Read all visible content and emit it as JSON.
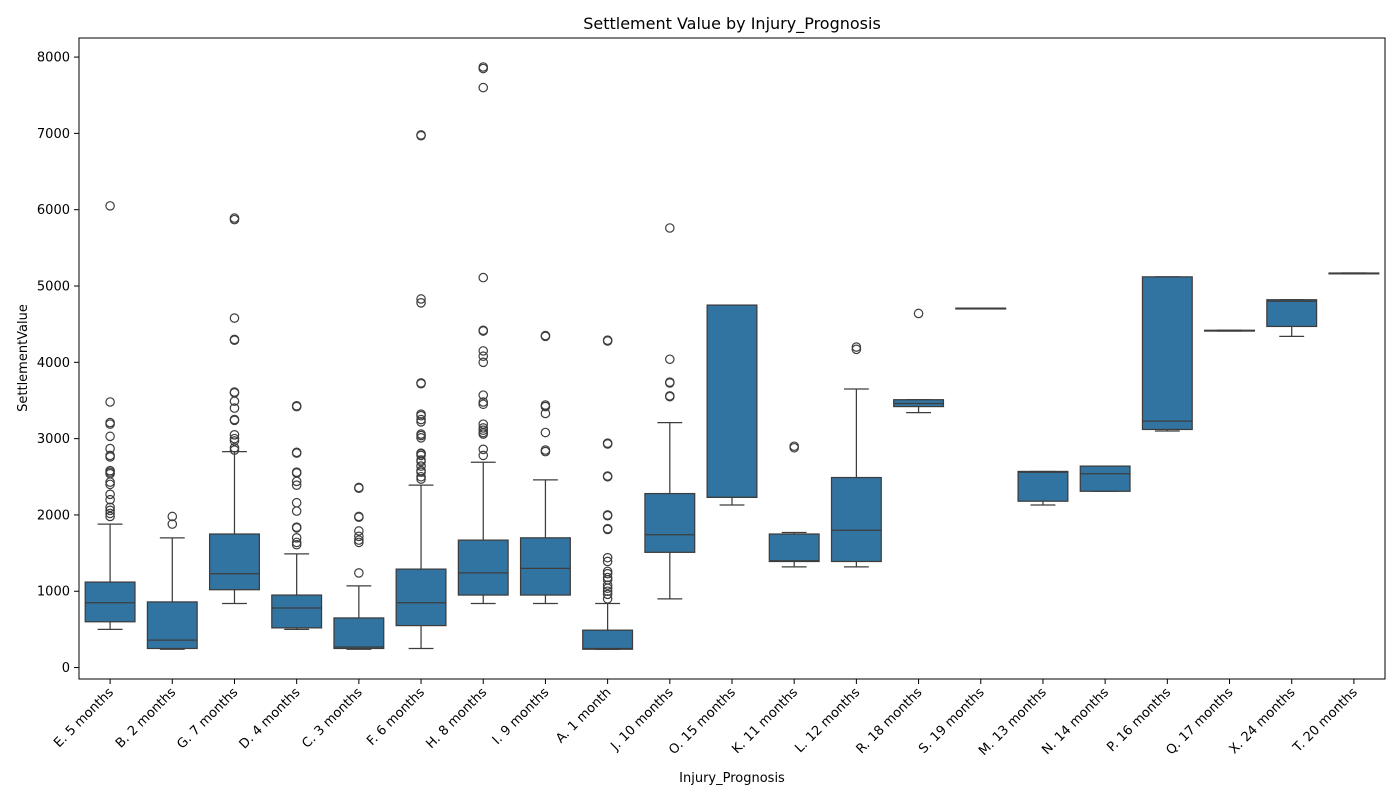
{
  "chart_data": {
    "type": "box",
    "title": "Settlement Value by Injury_Prognosis",
    "xlabel": "Injury_Prognosis",
    "ylabel": "SettlementValue",
    "ylim": [
      -150,
      8250
    ],
    "yticks": [
      0,
      1000,
      2000,
      3000,
      4000,
      5000,
      6000,
      7000,
      8000
    ],
    "grid": false,
    "color": "#3274a1",
    "line_color": "#3d3d3d",
    "categories": [
      "E. 5 months",
      "B. 2 months",
      "G. 7 months",
      "D. 4 months",
      "C. 3 months",
      "F. 6 months",
      "H. 8 months",
      "I. 9 months",
      "A. 1 month",
      "J. 10 months",
      "O. 15 months",
      "K. 11 months",
      "L. 12 months",
      "R. 18 months",
      "S. 19 months",
      "M. 13 months",
      "N. 14 months",
      "P. 16 months",
      "Q. 17 months",
      "X. 24 months",
      "T. 20 months"
    ],
    "boxes": [
      {
        "q1": 600,
        "median": 850,
        "q3": 1120,
        "whislo": 500,
        "whishi": 1880,
        "fliers": [
          1980,
          2020,
          2060,
          2100,
          2200,
          2270,
          2400,
          2430,
          2540,
          2560,
          2580,
          2760,
          2780,
          2870,
          3030,
          3190,
          3210,
          3480,
          6050
        ]
      },
      {
        "q1": 250,
        "median": 360,
        "q3": 860,
        "whislo": 240,
        "whishi": 1700,
        "fliers": [
          1880,
          1980
        ]
      },
      {
        "q1": 1020,
        "median": 1230,
        "q3": 1750,
        "whislo": 840,
        "whishi": 2830,
        "fliers": [
          2850,
          2880,
          2970,
          3000,
          3050,
          3240,
          3250,
          3400,
          3490,
          3600,
          3610,
          4290,
          4300,
          4580,
          5870,
          5890
        ]
      },
      {
        "q1": 520,
        "median": 780,
        "q3": 950,
        "whislo": 500,
        "whishi": 1490,
        "fliers": [
          1610,
          1640,
          1700,
          1830,
          1840,
          2050,
          2160,
          2390,
          2440,
          2550,
          2560,
          2810,
          2820,
          3420,
          3430
        ]
      },
      {
        "q1": 250,
        "median": 270,
        "q3": 650,
        "whislo": 240,
        "whishi": 1070,
        "fliers": [
          1240,
          1640,
          1670,
          1720,
          1790,
          1970,
          1980,
          2350,
          2360
        ]
      },
      {
        "q1": 550,
        "median": 850,
        "q3": 1290,
        "whislo": 250,
        "whishi": 2390,
        "fliers": [
          2470,
          2500,
          2560,
          2580,
          2640,
          2700,
          2720,
          2780,
          2800,
          2810,
          3010,
          3040,
          3060,
          3220,
          3250,
          3300,
          3320,
          3720,
          3730,
          4780,
          4830,
          6970,
          6980
        ]
      },
      {
        "q1": 950,
        "median": 1240,
        "q3": 1670,
        "whislo": 840,
        "whishi": 2690,
        "fliers": [
          2780,
          2860,
          3060,
          3080,
          3110,
          3140,
          3190,
          3450,
          3480,
          3570,
          4000,
          4080,
          4150,
          4410,
          4420,
          5110,
          7600,
          7850,
          7870
        ]
      },
      {
        "q1": 950,
        "median": 1300,
        "q3": 1700,
        "whislo": 840,
        "whishi": 2460,
        "fliers": [
          2830,
          2850,
          3080,
          3330,
          3420,
          3440,
          4340,
          4350
        ]
      },
      {
        "q1": 240,
        "median": 250,
        "q3": 490,
        "whislo": 240,
        "whishi": 840,
        "fliers": [
          900,
          960,
          1000,
          1040,
          1080,
          1150,
          1180,
          1230,
          1260,
          1390,
          1440,
          1810,
          1820,
          1990,
          2000,
          2500,
          2510,
          2930,
          2940,
          4280,
          4290
        ]
      },
      {
        "q1": 1510,
        "median": 1740,
        "q3": 2280,
        "whislo": 900,
        "whishi": 3210,
        "fliers": [
          3550,
          3560,
          3730,
          3740,
          4040,
          5760
        ]
      },
      {
        "q1": 2230,
        "median": 2230,
        "q3": 4750,
        "whislo": 2130,
        "whishi": 4750,
        "fliers": []
      },
      {
        "q1": 1390,
        "median": 1400,
        "q3": 1750,
        "whislo": 1320,
        "whishi": 1770,
        "fliers": [
          2880,
          2900
        ]
      },
      {
        "q1": 1390,
        "median": 1800,
        "q3": 2490,
        "whislo": 1320,
        "whishi": 3650,
        "fliers": [
          4170,
          4200
        ]
      },
      {
        "q1": 3420,
        "median": 3460,
        "q3": 3510,
        "whislo": 3340,
        "whishi": 3510,
        "fliers": [
          4640
        ]
      },
      {
        "q1": 4700,
        "median": 4705,
        "q3": 4710,
        "whislo": 4700,
        "whishi": 4710,
        "fliers": []
      },
      {
        "q1": 2180,
        "median": 2560,
        "q3": 2570,
        "whislo": 2130,
        "whishi": 2570,
        "fliers": []
      },
      {
        "q1": 2310,
        "median": 2540,
        "q3": 2640,
        "whislo": 2310,
        "whishi": 2640,
        "fliers": []
      },
      {
        "q1": 3120,
        "median": 3230,
        "q3": 5120,
        "whislo": 3100,
        "whishi": 5120,
        "fliers": []
      },
      {
        "q1": 4410,
        "median": 4415,
        "q3": 4420,
        "whislo": 4410,
        "whishi": 4420,
        "fliers": []
      },
      {
        "q1": 4470,
        "median": 4800,
        "q3": 4820,
        "whislo": 4340,
        "whishi": 4820,
        "fliers": []
      },
      {
        "q1": 5160,
        "median": 5165,
        "q3": 5170,
        "whislo": 5160,
        "whishi": 5170,
        "fliers": []
      }
    ]
  }
}
